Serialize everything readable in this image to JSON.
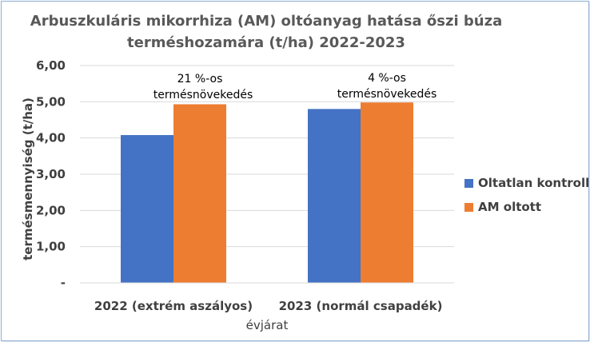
{
  "chart_data": {
    "type": "bar",
    "title_lines": [
      "Arbuszkuláris mikorrhiza (AM) oltóanyag hatása őszi búza",
      "terméshozamára (t/ha) 2022-2023"
    ],
    "xlabel": "évjárat",
    "ylabel": "termésmennyiség (t/ha)",
    "categories": [
      "2022 (extrém aszályos)",
      "2023 (normál csapadék)"
    ],
    "series": [
      {
        "name": "Oltatlan kontroll",
        "values": [
          4.08,
          4.8
        ],
        "color": "#4472C4"
      },
      {
        "name": "AM oltott",
        "values": [
          4.93,
          4.98
        ],
        "color": "#ED7D31"
      }
    ],
    "ylim": [
      0,
      6
    ],
    "y_ticks": [
      0,
      1,
      2,
      3,
      4,
      5,
      6
    ],
    "y_tick_labels": [
      "-",
      "1,00",
      "2,00",
      "3,00",
      "4,00",
      "5,00",
      "6,00"
    ],
    "grid": "horizontal",
    "legend_position": "right",
    "annotations": [
      {
        "category_index": 0,
        "lines": [
          "21 %-os",
          "termésnövekedés"
        ]
      },
      {
        "category_index": 1,
        "lines": [
          "4 %-os",
          "termésnövekedés"
        ]
      }
    ]
  }
}
